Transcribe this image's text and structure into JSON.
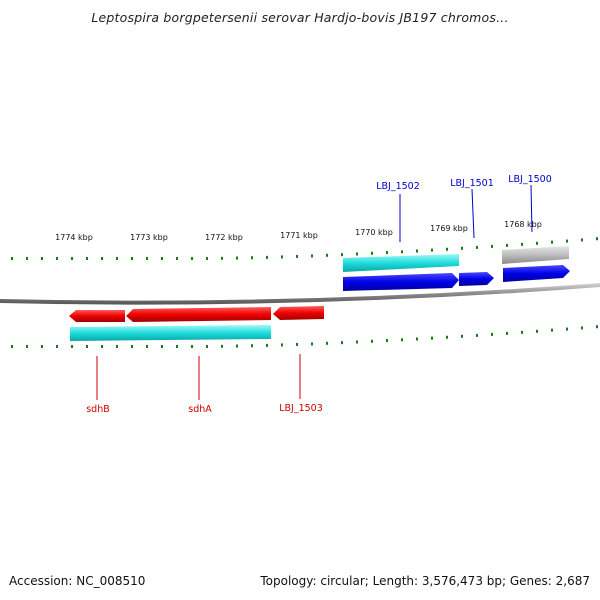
{
  "title": "Leptospira borgpetersenii serovar Hardjo-bovis JB197 chromos...",
  "footer": {
    "accession": "Accession: NC_008510",
    "summary": "Topology: circular; Length: 3,576,473 bp; Genes: 2,687"
  },
  "colors": {
    "forward_gene": "#0000ee",
    "reverse_gene": "#ee0000",
    "cds": "#22dddd",
    "rna_gene": "#b5b5b5",
    "tick": "#1a7a1a",
    "backbone": "#808080",
    "forward_label": "#0000cc",
    "reverse_label": "#cc0000"
  },
  "scale": {
    "unit": "kbp",
    "labels": [
      "1774 kbp",
      "1773 kbp",
      "1772 kbp",
      "1771 kbp",
      "1770 kbp",
      "1769 kbp",
      "1768 kbp"
    ]
  },
  "forward_genes": [
    {
      "label": "LBJ_1502",
      "type": "gene"
    },
    {
      "label": "LBJ_1501",
      "type": "gene"
    },
    {
      "label": "LBJ_1500",
      "type": "rna"
    }
  ],
  "reverse_genes": [
    {
      "label": "sdhB"
    },
    {
      "label": "sdhA"
    },
    {
      "label": "LBJ_1503"
    }
  ]
}
